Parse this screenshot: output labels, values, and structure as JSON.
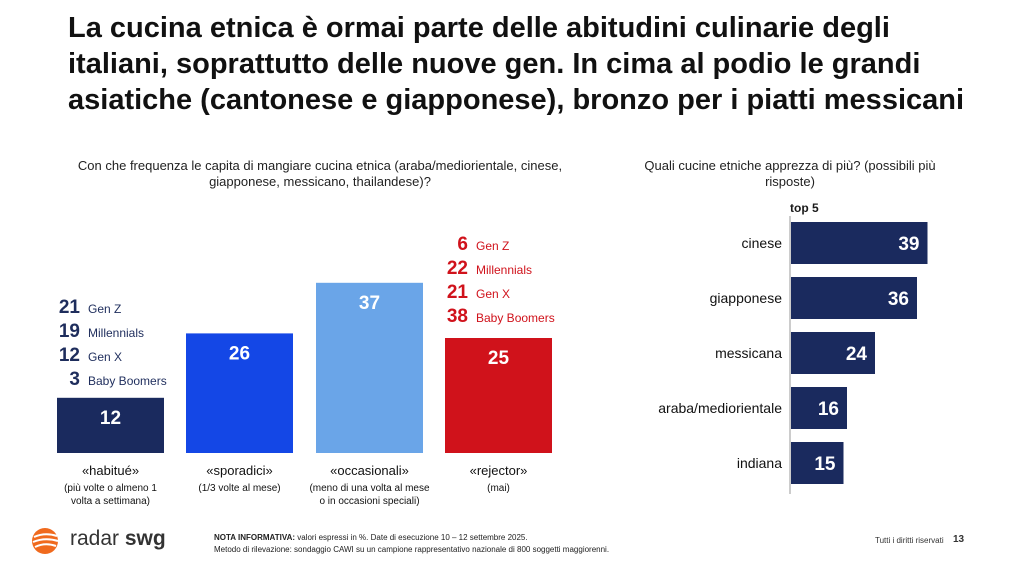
{
  "title": "La cucina etnica è ormai parte delle abitudini culinarie degli italiani, soprattutto delle nuove gen. In cima al podio le grandi asiatiche (cantonese e giapponese), bronzo per i piatti messicani",
  "question_left": "Con che frequenza le capita di mangiare cucina etnica (araba/mediorientale, cinese, giapponese, messicano, thailandese)?",
  "question_right": "Quali cucine etniche apprezza di più? (possibili più risposte)",
  "top5_label": "top 5",
  "colors": {
    "navy": "#1a2a5e",
    "blue": "#1447e6",
    "lightblue": "#6aa5e8",
    "red": "#d0121b"
  },
  "segments": {
    "habitue": [
      {
        "value": "21",
        "label": "Gen Z"
      },
      {
        "value": "19",
        "label": "Millennials"
      },
      {
        "value": "12",
        "label": "Gen X"
      },
      {
        "value": "3",
        "label": "Baby Boomers"
      }
    ],
    "rejector": [
      {
        "value": "6",
        "label": "Gen Z"
      },
      {
        "value": "22",
        "label": "Millennials"
      },
      {
        "value": "21",
        "label": "Gen X"
      },
      {
        "value": "38",
        "label": "Baby Boomers"
      }
    ]
  },
  "chart_data": [
    {
      "type": "bar",
      "categories": [
        "«habitué»",
        "«sporadici»",
        "«occasionali»",
        "«rejector»"
      ],
      "subtitles": [
        "(più volte o almeno 1 volta a settimana)",
        "(1/3 volte al mese)",
        "(meno di una volta al mese o in occasioni speciali)",
        "(mai)"
      ],
      "values": [
        12,
        26,
        37,
        25
      ],
      "value_labels": [
        "12",
        "26",
        "37",
        "25"
      ],
      "colors": [
        "#1a2a5e",
        "#1447e6",
        "#6aa5e8",
        "#d0121b"
      ]
    },
    {
      "type": "bar",
      "orientation": "horizontal",
      "categories": [
        "cinese",
        "giapponese",
        "messicana",
        "araba/mediorientale",
        "indiana"
      ],
      "values": [
        39,
        36,
        24,
        16,
        15
      ],
      "value_labels": [
        "39",
        "36",
        "24",
        "16",
        "15"
      ],
      "color": "#1a2a5e"
    }
  ],
  "footer": {
    "note_bold": "NOTA INFORMATIVA:",
    "note_text": " valori espressi in %. Date di esecuzione 10 – 12 settembre 2025.",
    "method": "Metodo di rilevazione: sondaggio CAWI su un campione rappresentativo nazionale di 800 soggetti maggiorenni.",
    "rights": "Tutti i diritti riservati",
    "page": "13",
    "logo_light": "radar ",
    "logo_bold": "swg"
  }
}
